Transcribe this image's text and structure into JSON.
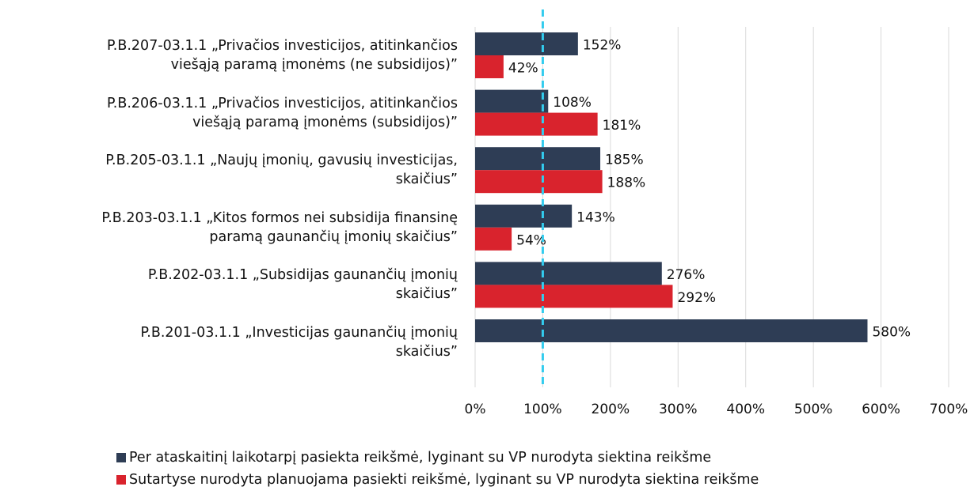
{
  "chart_data": {
    "type": "hbar",
    "categories": [
      "P.B.207-03.1.1 „Privačios investicijos, atitinkančios\nviešąją paramą įmonėms (ne subsidijos)”",
      "P.B.206-03.1.1 „Privačios investicijos, atitinkančios\nviešąją paramą įmonėms (subsidijos)”",
      "P.B.205-03.1.1 „Naujų įmonių, gavusių investicijas,\nskaičius”",
      "P.B.203-03.1.1 „Kitos formos nei subsidija finansinę\nparamą gaunančių įmonių skaičius”",
      "P.B.202-03.1.1 „Subsidijas gaunančių įmonių\nskaičius”",
      "P.B.201-03.1.1 „Investicijas gaunančių įmonių\nskaičius”"
    ],
    "series": [
      {
        "name": "Per ataskaitinį laikotarpį pasiekta reikšmė, lyginant su VP nurodyta siektina reikšme",
        "color": "#2e3d55",
        "values": [
          152,
          108,
          185,
          143,
          276,
          580
        ],
        "value_labels": [
          "152%",
          "108%",
          "185%",
          "143%",
          "276%",
          "580%"
        ]
      },
      {
        "name": "Sutartyse nurodyta planuojama pasiekti reikšmė, lyginant su VP nurodyta siektina reikšme",
        "color": "#d9232d",
        "values": [
          42,
          181,
          188,
          54,
          292,
          null
        ],
        "value_labels": [
          "42%",
          "181%",
          "188%",
          "54%",
          "292%",
          null
        ]
      }
    ],
    "xlim": [
      0,
      700
    ],
    "xticks": [
      {
        "value": 0,
        "label": "0%"
      },
      {
        "value": 100,
        "label": "100%"
      },
      {
        "value": 200,
        "label": "200%"
      },
      {
        "value": 300,
        "label": "300%"
      },
      {
        "value": 400,
        "label": "400%"
      },
      {
        "value": 500,
        "label": "500%"
      },
      {
        "value": 600,
        "label": "600%"
      },
      {
        "value": 700,
        "label": "700%"
      }
    ],
    "grid": true,
    "reference_line": {
      "value": 100,
      "color": "#33ccee"
    }
  }
}
